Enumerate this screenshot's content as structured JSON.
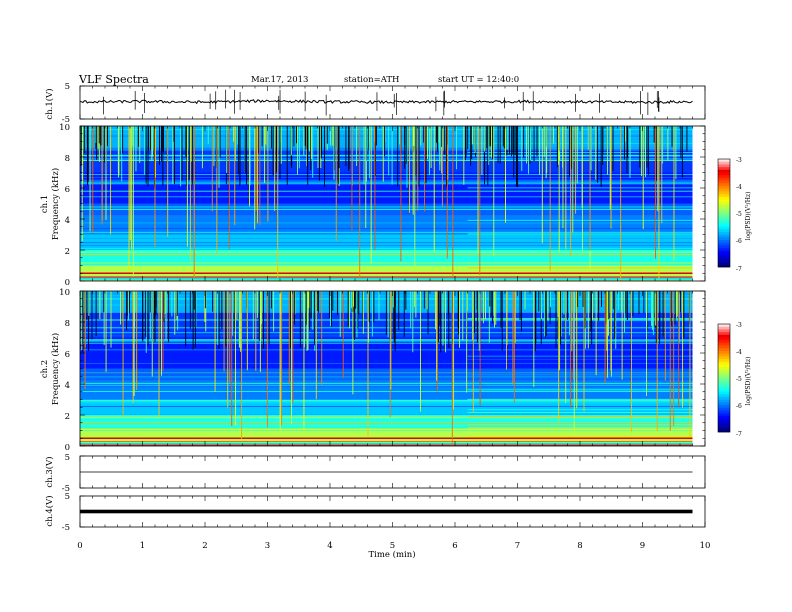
{
  "header": {
    "title": "VLF  Spectra",
    "date": "Mar.17, 2013",
    "station": "station=ATH",
    "start": "start  UT =    12:40:0"
  },
  "chart_data": [
    {
      "type": "line",
      "panel": "ch1-waveform",
      "ylabel": "ch.1(V)",
      "ylim": [
        -5,
        5
      ],
      "yticks": [
        "5",
        "-5"
      ],
      "x": [
        0,
        1,
        2,
        3,
        4,
        5,
        6,
        7,
        8,
        9,
        9.8
      ],
      "y": [
        0.2,
        0.3,
        0.1,
        0.5,
        0.2,
        0.1,
        0.2,
        0.3,
        0.2,
        0.1,
        0.2
      ]
    },
    {
      "type": "heatmap",
      "panel": "ch1-spectrogram",
      "ylabel": "ch.1",
      "ylabel2": "Frequency  (kHz)",
      "ylim": [
        0,
        10
      ],
      "yticks": [
        "10",
        "8",
        "6",
        "4",
        "2",
        "0"
      ],
      "colorbar": {
        "label": "log(PSD)(V²/Hz)",
        "range": [
          -7,
          -3
        ],
        "ticks": [
          "-3",
          "-4",
          "-5",
          "-6",
          "-7"
        ]
      }
    },
    {
      "type": "heatmap",
      "panel": "ch2-spectrogram",
      "ylabel": "ch.2",
      "ylabel2": "Frequency  (kHz)",
      "ylim": [
        0,
        10
      ],
      "yticks": [
        "10",
        "8",
        "6",
        "4",
        "2",
        "0"
      ],
      "colorbar": {
        "label": "log(PSD)(V²/Hz)",
        "range": [
          -7,
          -3
        ],
        "ticks": [
          "-3",
          "-4",
          "-5",
          "-6",
          "-7"
        ]
      }
    },
    {
      "type": "line",
      "panel": "ch3-waveform",
      "ylabel": "ch.3(V)",
      "ylim": [
        -5,
        5
      ],
      "yticks": [
        "5",
        "-5"
      ],
      "x": [
        0,
        9.8
      ],
      "y": [
        0,
        0
      ]
    },
    {
      "type": "line",
      "panel": "ch4-waveform",
      "ylabel": "ch.4(V)",
      "ylim": [
        -5,
        5
      ],
      "yticks": [
        "5",
        "-5"
      ],
      "x": [
        0,
        9.8
      ],
      "y": [
        0,
        0
      ]
    }
  ],
  "xaxis": {
    "label": "Time  (min)",
    "xlim": [
      0,
      10
    ],
    "ticks": [
      "0",
      "1",
      "2",
      "3",
      "4",
      "5",
      "6",
      "7",
      "8",
      "9",
      "10"
    ]
  }
}
